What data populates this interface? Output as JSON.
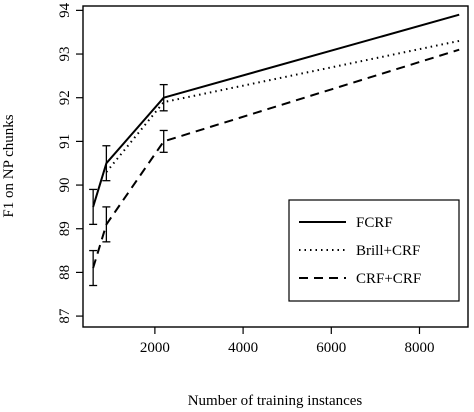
{
  "chart_data": {
    "type": "line",
    "xlabel": "Number of training instances",
    "ylabel": "F1 on NP chunks",
    "xlim": [
      370,
      9100
    ],
    "ylim": [
      86.75,
      94.1
    ],
    "xticks": [
      2000,
      4000,
      6000,
      8000
    ],
    "yticks": [
      87,
      88,
      89,
      90,
      91,
      92,
      93,
      94
    ],
    "grid": false,
    "legend_position": "bottom-right",
    "series": [
      {
        "name": "FCRF",
        "style": "solid",
        "x": [
          600,
          900,
          2200,
          8900
        ],
        "y": [
          89.5,
          90.5,
          92.0,
          93.9
        ],
        "err": [
          0.4,
          0.4,
          0.3,
          null
        ]
      },
      {
        "name": "Brill+CRF",
        "style": "dotted",
        "x": [
          900,
          2200,
          8900
        ],
        "y": [
          90.3,
          91.9,
          93.3
        ],
        "err": [
          null,
          null,
          null
        ]
      },
      {
        "name": "CRF+CRF",
        "style": "dashed",
        "x": [
          600,
          900,
          2200,
          8900
        ],
        "y": [
          88.1,
          89.1,
          91.0,
          93.1
        ],
        "err": [
          0.4,
          0.4,
          0.25,
          null
        ]
      }
    ]
  }
}
